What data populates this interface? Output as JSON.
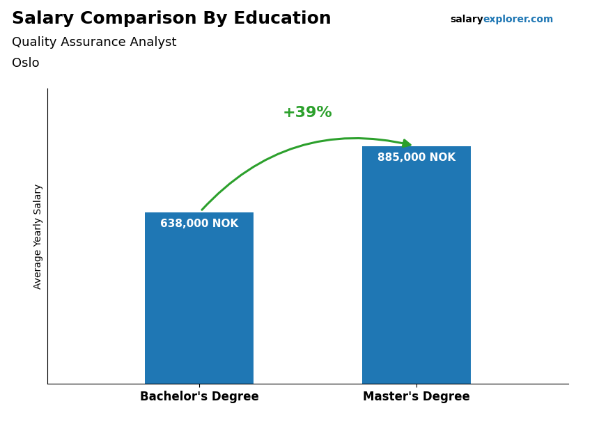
{
  "chart_data": {
    "type": "bar",
    "title": "Salary Comparison By Education",
    "subtitle": [
      "Quality Assurance Analyst",
      "Oslo"
    ],
    "ylabel": "Average Yearly Salary",
    "categories": [
      "Bachelor's Degree",
      "Master's Degree"
    ],
    "values": [
      638000,
      885000
    ],
    "value_labels": [
      "638,000 NOK",
      "885,000 NOK"
    ],
    "data_labels": true,
    "ylim": [
      0,
      1100000
    ],
    "tick_labels": "x",
    "annotations": [
      "+39%",
      "salary",
      "explorer.com"
    ]
  }
}
